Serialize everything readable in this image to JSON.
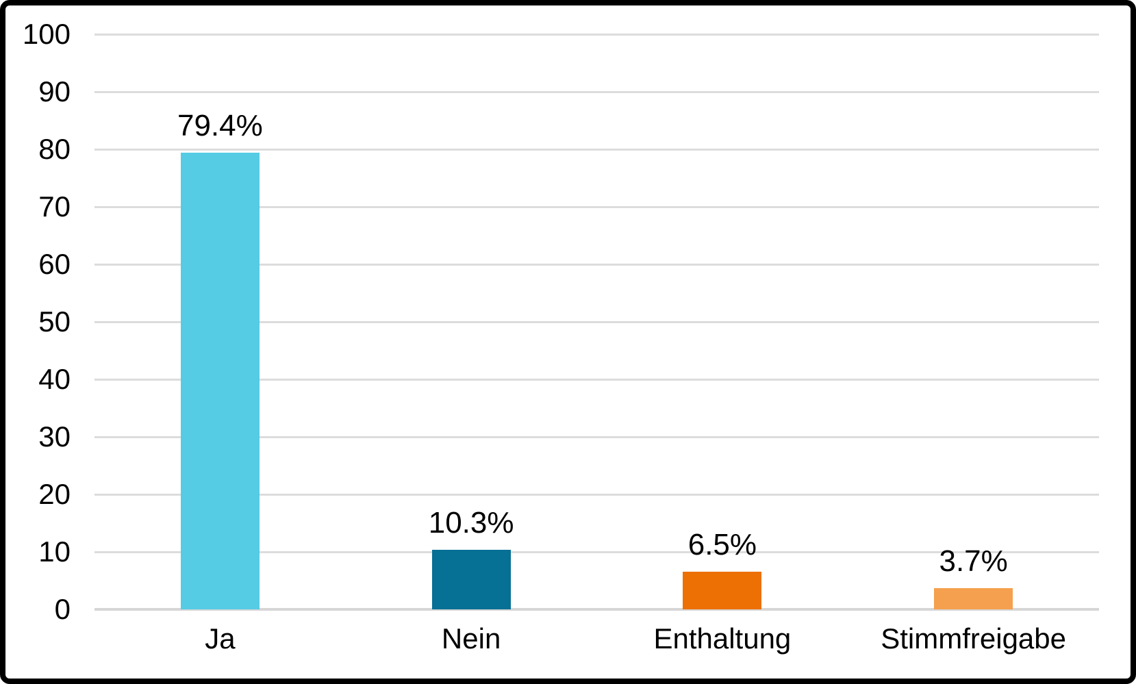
{
  "chart_data": {
    "type": "bar",
    "categories": [
      "Ja",
      "Nein",
      "Enthaltung",
      "Stimmfreigabe"
    ],
    "values": [
      79.4,
      10.3,
      6.5,
      3.7
    ],
    "data_labels": [
      "79.4%",
      "10.3%",
      "6.5%",
      "3.7%"
    ],
    "bar_colors": [
      "#56CBE4",
      "#077095",
      "#EC7004",
      "#F5A04E"
    ],
    "title": "",
    "xlabel": "",
    "ylabel": "",
    "ylim": [
      0,
      100
    ],
    "yticks": [
      0,
      10,
      20,
      30,
      40,
      50,
      60,
      70,
      80,
      90,
      100
    ],
    "ytick_labels": [
      "0",
      "10",
      "20",
      "30",
      "40",
      "50",
      "60",
      "70",
      "80",
      "90",
      "100"
    ],
    "grid": "horizontal",
    "gridline_color": "#DCDCDC",
    "baseline_color": "#D6D6D6",
    "text_color": "#000000",
    "legend_position": "none"
  },
  "frame": {
    "border_color": "#000000",
    "background_color": "#FFFFFF"
  }
}
